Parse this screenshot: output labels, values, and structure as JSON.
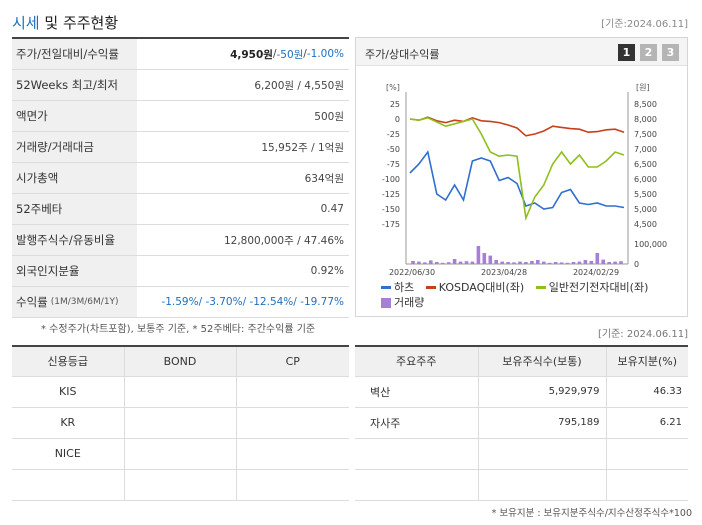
{
  "header": {
    "title_part1": "시세",
    "title_part2": " 및 주주현황",
    "as_of": "[기준:2024.06.11]"
  },
  "summary": {
    "price_label": "주가/전일대비/수익률",
    "price": "4,950원",
    "sep1": " / ",
    "change": "-50원",
    "sep2": " / ",
    "change_pct": "-1.00%",
    "weeks52_label": "52Weeks 최고/최저",
    "weeks52_value": "6,200원 / 4,550원",
    "par_label": "액면가",
    "par_value": "500원",
    "volume_label": "거래량/거래대금",
    "volume_value": "15,952주 / 1억원",
    "mcap_label": "시가총액",
    "mcap_value": "634억원",
    "beta_label": "52주베타",
    "beta_value": "0.47",
    "shares_label": "발행주식수/유동비율",
    "shares_value": "12,800,000주 / 47.46%",
    "foreign_label": "외국인지분율",
    "foreign_value": "0.92%",
    "return_label": "수익률",
    "return_periods": "(1M/3M/6M/1Y)",
    "return_value": "-1.59%/ -3.70%/ -12.54%/ -19.77%"
  },
  "chart_panel": {
    "title": "주가/상대수익률",
    "tabs": [
      "1",
      "2",
      "3"
    ],
    "legend": [
      {
        "label": "하츠",
        "color": "#2f6fce",
        "kind": "line"
      },
      {
        "label": "KOSDAQ대비(좌)",
        "color": "#c8401a",
        "kind": "line"
      },
      {
        "label": "일반전기전자대비(좌)",
        "color": "#8fbf1c",
        "kind": "line"
      },
      {
        "label": "거래량",
        "color": "#a77fd6",
        "kind": "bar"
      }
    ]
  },
  "chart_data": {
    "type": "line",
    "left_unit": "[%]",
    "right_unit": "[원]",
    "left_ticks": [
      "25",
      "0",
      "-25",
      "-50",
      "-75",
      "-100",
      "-125",
      "-150",
      "-175"
    ],
    "right_ticks": [
      "8,500",
      "8,000",
      "7,500",
      "7,000",
      "6,500",
      "6,000",
      "5,500",
      "5,000",
      "4,500"
    ],
    "volume_ticks": [
      "100,000",
      "0"
    ],
    "x_tick_labels": [
      "2022/06/30",
      "2023/04/28",
      "2024/02/29"
    ],
    "ylim_left": [
      -175,
      25
    ],
    "ylim_right": [
      4500,
      8500
    ],
    "volume_max": 100000,
    "series": [
      {
        "name": "하츠",
        "axis": "right",
        "color": "#2f6fce",
        "values": [
          6200,
          6500,
          6900,
          5500,
          5300,
          5800,
          5300,
          6600,
          6700,
          6600,
          5950,
          6050,
          5850,
          5100,
          5200,
          5000,
          5050,
          5550,
          5650,
          5200,
          5150,
          5200,
          5100,
          5100,
          5050
        ]
      },
      {
        "name": "KOSDAQ대비(좌)",
        "axis": "left",
        "color": "#c8401a",
        "values": [
          0,
          -2,
          3,
          -3,
          -6,
          -2,
          -4,
          2,
          -3,
          -4,
          -6,
          -10,
          -15,
          -28,
          -25,
          -20,
          -12,
          -14,
          -16,
          -17,
          -22,
          -21,
          -18,
          -17,
          -22
        ]
      },
      {
        "name": "일반전기전자대비(좌)",
        "axis": "left",
        "color": "#8fbf1c",
        "values": [
          0,
          -2,
          2,
          -5,
          -12,
          -8,
          -4,
          0,
          -25,
          -55,
          -62,
          -60,
          -62,
          -165,
          -130,
          -110,
          -75,
          -55,
          -75,
          -60,
          -80,
          -80,
          -70,
          -55,
          -60
        ]
      }
    ],
    "volume": [
      15000,
      12000,
      8000,
      18000,
      10000,
      6000,
      9000,
      25000,
      12000,
      14000,
      12000,
      90000,
      55000,
      42000,
      20000,
      12000,
      10000,
      8000,
      12000,
      10000,
      15000,
      20000,
      12000,
      6000,
      10000,
      8000,
      6000,
      10000,
      12000,
      20000,
      15000,
      55000,
      22000,
      10000,
      12000,
      14000
    ]
  },
  "notes": {
    "left": "* 수정주가(차트포함), 보통주 기준, * 52주베타: 주간수익률 기준",
    "right": "[기준: 2024.06.11]",
    "bottom": "* 보유지분 : 보유지분주식수/지수산정주식수*100"
  },
  "credit_table": {
    "headers": [
      "신용등급",
      "BOND",
      "CP"
    ],
    "rows": [
      [
        "KIS",
        "",
        ""
      ],
      [
        "KR",
        "",
        ""
      ],
      [
        "NICE",
        "",
        ""
      ],
      [
        "",
        "",
        ""
      ]
    ]
  },
  "holders_table": {
    "headers": [
      "주요주주",
      "보유주식수(보통)",
      "보유지분(%)"
    ],
    "rows": [
      [
        "벽산",
        "5,929,979",
        "46.33"
      ],
      [
        "자사주",
        "795,189",
        "6.21"
      ],
      [
        "",
        "",
        ""
      ],
      [
        "",
        "",
        ""
      ]
    ]
  }
}
